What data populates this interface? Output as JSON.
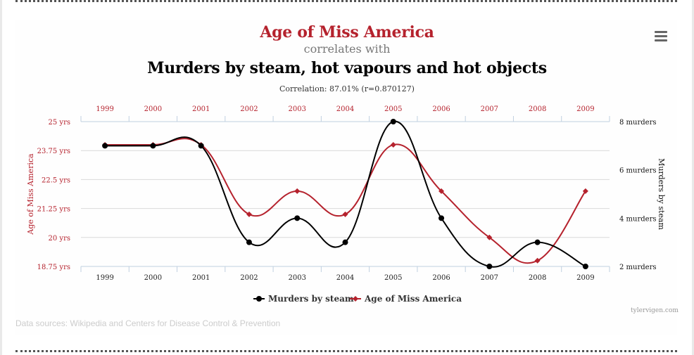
{
  "header": {
    "title": "Age of Miss America",
    "connector": "correlates with",
    "subtitle": "Murders by steam, hot vapours and hot objects",
    "correlation": "Correlation: 87.01% (r=0.870127)"
  },
  "footer": {
    "credit": "tylervigen.com",
    "sources": "Data sources: Wikipedia and Centers for Disease Control & Prevention"
  },
  "menu_icon": "hamburger-menu-icon",
  "colors": {
    "red": "#b5222d",
    "black": "#000000",
    "grid": "#d9d9d9",
    "axis": "#c0d0e0"
  },
  "chart_data": {
    "type": "line",
    "x": [
      "1999",
      "2000",
      "2001",
      "2002",
      "2003",
      "2004",
      "2005",
      "2006",
      "2007",
      "2008",
      "2009"
    ],
    "top_tick_labels": [
      "1999",
      "2000",
      "2001",
      "2002",
      "2003",
      "2004",
      "2005",
      "2006",
      "2007",
      "2008",
      "2009"
    ],
    "series": [
      {
        "name": "Murders by steam",
        "axis": "right",
        "color": "#000000",
        "marker": "circle",
        "values": [
          7,
          7,
          7,
          3,
          4,
          3,
          8,
          4,
          2,
          3,
          2
        ]
      },
      {
        "name": "Age of Miss America",
        "axis": "left",
        "color": "#b5222d",
        "marker": "diamond",
        "values": [
          24,
          24,
          24,
          21,
          22,
          21,
          24,
          22,
          20,
          19,
          22
        ]
      }
    ],
    "left_axis": {
      "label": "Age of Miss America",
      "ylim": [
        18.75,
        25
      ],
      "ticks": [
        25,
        23.75,
        22.5,
        21.25,
        20,
        18.75
      ],
      "tick_labels": [
        "25 yrs",
        "23.75 yrs",
        "22.5 yrs",
        "21.25 yrs",
        "20 yrs",
        "18.75 yrs"
      ]
    },
    "right_axis": {
      "label": "Murders by steam",
      "ylim": [
        2,
        8
      ],
      "ticks": [
        8,
        6,
        4,
        2
      ],
      "tick_labels": [
        "8 murders",
        "6 murders",
        "4 murders",
        "2 murders"
      ]
    },
    "legend": [
      "Murders by steam",
      "Age of Miss America"
    ],
    "legend_position": "bottom-center",
    "grid": true
  }
}
